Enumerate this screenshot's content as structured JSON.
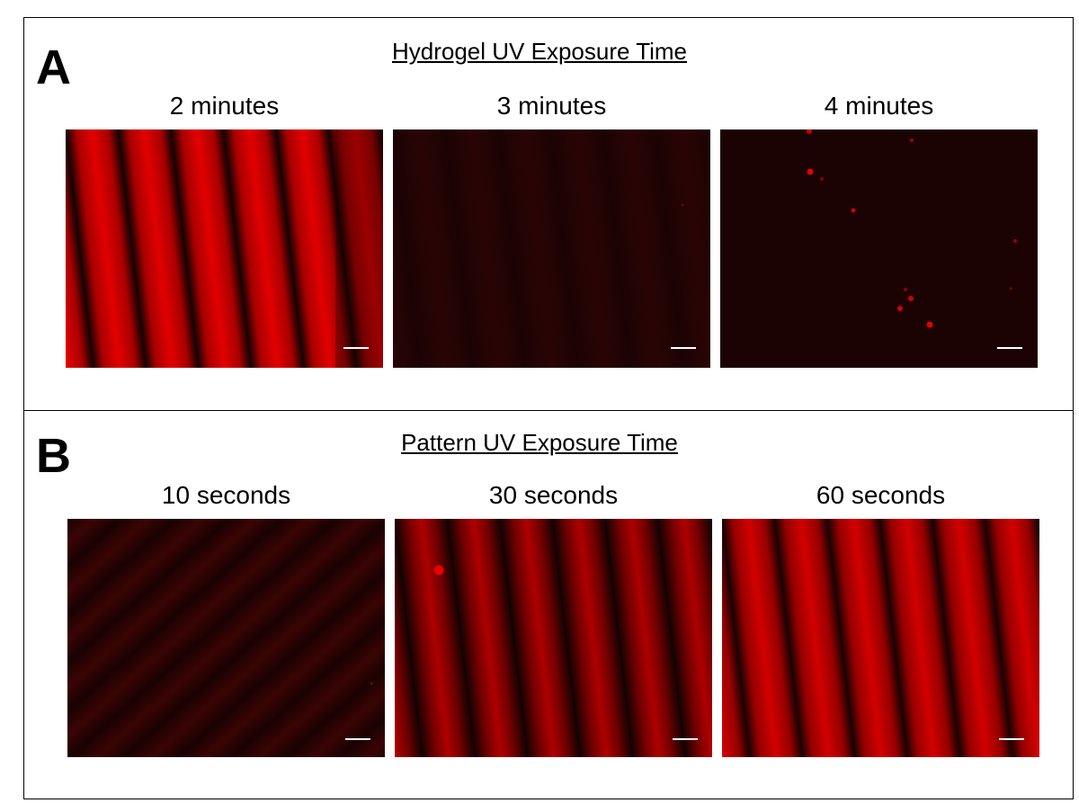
{
  "panels": [
    {
      "letter": "A",
      "title": "Hydrogel UV Exposure Time",
      "images": [
        {
          "label": "2 minutes",
          "pattern": "bright-stripes"
        },
        {
          "label": "3 minutes",
          "pattern": "dark-uniform"
        },
        {
          "label": "4 minutes",
          "pattern": "dark-dots"
        }
      ]
    },
    {
      "letter": "B",
      "title": "Pattern UV Exposure Time",
      "images": [
        {
          "label": "10 seconds",
          "pattern": "faint-diagonal-stripes"
        },
        {
          "label": "30 seconds",
          "pattern": "medium-stripes"
        },
        {
          "label": "60 seconds",
          "pattern": "bright-stripes"
        }
      ]
    }
  ],
  "colors": {
    "fluorescence_red": "#e00000",
    "background_dark": "#1b0303",
    "scale_bar": "#ffffff"
  }
}
